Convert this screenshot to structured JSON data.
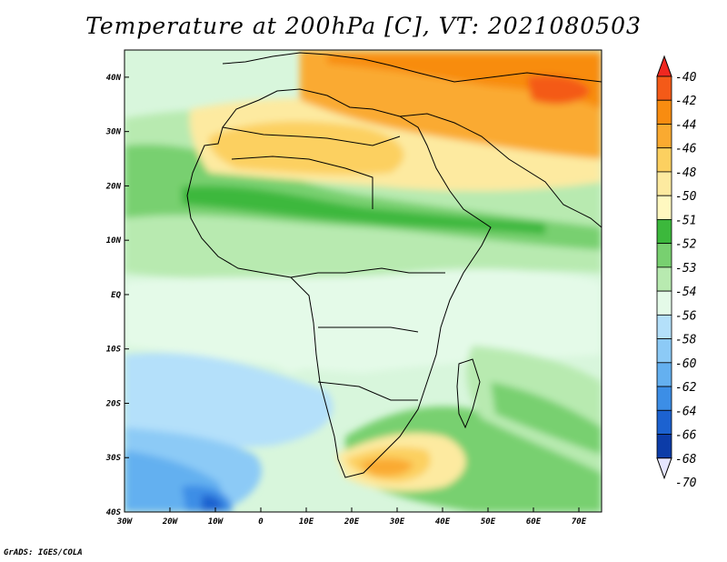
{
  "title": "Temperature at 200hPa [C], VT: 2021080503",
  "credit": "GrADS: IGES/COLA",
  "map": {
    "lon_range": [
      -30,
      75
    ],
    "lat_range": [
      -40,
      45
    ],
    "x_ticks": [
      {
        "value": -30,
        "label": "30W"
      },
      {
        "value": -20,
        "label": "20W"
      },
      {
        "value": -10,
        "label": "10W"
      },
      {
        "value": 0,
        "label": "0"
      },
      {
        "value": 10,
        "label": "10E"
      },
      {
        "value": 20,
        "label": "20E"
      },
      {
        "value": 30,
        "label": "30E"
      },
      {
        "value": 40,
        "label": "40E"
      },
      {
        "value": 50,
        "label": "50E"
      },
      {
        "value": 60,
        "label": "60E"
      },
      {
        "value": 70,
        "label": "70E"
      }
    ],
    "y_ticks": [
      {
        "value": -40,
        "label": "40S"
      },
      {
        "value": -30,
        "label": "30S"
      },
      {
        "value": -20,
        "label": "20S"
      },
      {
        "value": -10,
        "label": "10S"
      },
      {
        "value": 0,
        "label": "EQ"
      },
      {
        "value": 10,
        "label": "10N"
      },
      {
        "value": 20,
        "label": "20N"
      },
      {
        "value": 30,
        "label": "30N"
      },
      {
        "value": 40,
        "label": "40N"
      }
    ]
  },
  "colorbar": {
    "labels": [
      "-40",
      "-42",
      "-44",
      "-46",
      "-48",
      "-50",
      "-51",
      "-52",
      "-53",
      "-54",
      "-56",
      "-58",
      "-60",
      "-62",
      "-64",
      "-66",
      "-68",
      "-70"
    ],
    "colors": [
      "#f02820",
      "#f45a18",
      "#f88c10",
      "#faaa30",
      "#fcd060",
      "#fdeaa0",
      "#fff8c0",
      "#3cb83c",
      "#78d070",
      "#b8eab0",
      "#e4fae8",
      "#b4e0fa",
      "#8ccaf6",
      "#64b0f0",
      "#3c8ee6",
      "#1c62d0",
      "#0c3ca8",
      "#081870"
    ]
  },
  "legend_bins": [
    {
      "level": -40,
      "color": "#f02820"
    },
    {
      "level": -42,
      "color": "#f45a18"
    },
    {
      "level": -44,
      "color": "#f88c10"
    },
    {
      "level": -46,
      "color": "#faaa30"
    },
    {
      "level": -48,
      "color": "#fcd060"
    },
    {
      "level": -50,
      "color": "#fdeaa0"
    },
    {
      "level": -51,
      "color": "#fff8c0"
    },
    {
      "level": -52,
      "color": "#3cb83c"
    },
    {
      "level": -53,
      "color": "#78d070"
    },
    {
      "level": -54,
      "color": "#b8eab0"
    },
    {
      "level": -56,
      "color": "#e4fae8"
    },
    {
      "level": -58,
      "color": "#b4e0fa"
    },
    {
      "level": -60,
      "color": "#8ccaf6"
    },
    {
      "level": -62,
      "color": "#64b0f0"
    },
    {
      "level": -64,
      "color": "#3c8ee6"
    },
    {
      "level": -66,
      "color": "#1c62d0"
    },
    {
      "level": -68,
      "color": "#0c3ca8"
    },
    {
      "level": -70,
      "color": "#081870"
    }
  ],
  "colors": {
    "background_field": "#b8eab0",
    "frame": "#000000"
  }
}
